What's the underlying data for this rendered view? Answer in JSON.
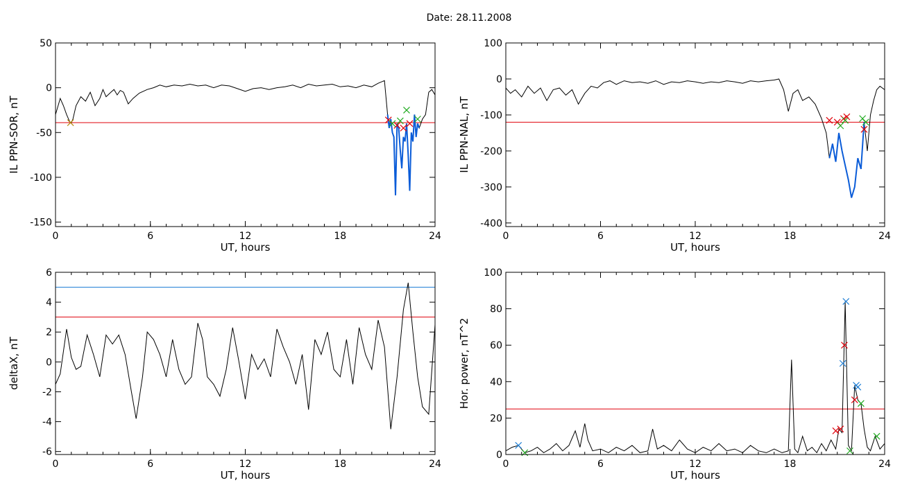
{
  "figure": {
    "title": "Date:  28.11.2008"
  },
  "colors": {
    "trace": "#000000",
    "highlight": "#0a5cd8",
    "threshold_red": "#e0000a",
    "threshold_blue": "#1f7fd6",
    "marker_red": "#e0000a",
    "marker_green": "#1faa1f",
    "marker_blue": "#1f7fd6",
    "marker_orange": "#b8860b"
  },
  "chart_data": [
    {
      "id": "p1",
      "type": "line",
      "xlabel": "UT, hours",
      "ylabel": "IL PPN-SOR, nT",
      "xlim": [
        0,
        24
      ],
      "ylim": [
        -155,
        50
      ],
      "xticks": [
        0,
        6,
        12,
        18,
        24
      ],
      "yticks": [
        50,
        0,
        -50,
        -100,
        -150
      ],
      "hlines": [
        {
          "y": -39,
          "color": "threshold_red"
        }
      ],
      "x": [
        0,
        0.3,
        0.5,
        0.7,
        0.9,
        1.0,
        1.1,
        1.3,
        1.6,
        1.9,
        2.2,
        2.5,
        2.8,
        3.0,
        3.2,
        3.5,
        3.7,
        3.9,
        4.1,
        4.3,
        4.6,
        4.9,
        5.3,
        5.8,
        6.2,
        6.6,
        7.0,
        7.5,
        8.0,
        8.5,
        9.0,
        9.5,
        10.0,
        10.5,
        11.0,
        11.5,
        12.0,
        12.5,
        13.0,
        13.5,
        14.0,
        14.5,
        15.0,
        15.5,
        16.0,
        16.5,
        17.0,
        17.5,
        18.0,
        18.5,
        19.0,
        19.5,
        20.0,
        20.4,
        20.8,
        21.0,
        21.1,
        21.2,
        21.3,
        21.4,
        21.5,
        21.6,
        21.7,
        21.8,
        21.9,
        22.0,
        22.1,
        22.2,
        22.3,
        22.4,
        22.5,
        22.6,
        22.7,
        22.8,
        22.9,
        23.0,
        23.2,
        23.4,
        23.6,
        23.8,
        24.0
      ],
      "values": [
        -30,
        -12,
        -20,
        -30,
        -38,
        -39,
        -35,
        -20,
        -10,
        -15,
        -5,
        -20,
        -12,
        -2,
        -10,
        -5,
        -2,
        -8,
        -3,
        -5,
        -18,
        -12,
        -6,
        -2,
        0,
        3,
        1,
        3,
        2,
        4,
        2,
        3,
        0,
        3,
        2,
        -1,
        -4,
        -1,
        0,
        -2,
        0,
        1,
        3,
        0,
        4,
        2,
        3,
        4,
        1,
        2,
        0,
        3,
        1,
        5,
        8,
        -30,
        -45,
        -35,
        -50,
        -55,
        -120,
        -40,
        -45,
        -70,
        -90,
        -55,
        -60,
        -40,
        -75,
        -115,
        -50,
        -60,
        -30,
        -55,
        -40,
        -45,
        -35,
        -30,
        -5,
        -2,
        -8
      ],
      "highlight_x": [
        21.0,
        23.0
      ],
      "markers": [
        {
          "x": 0.95,
          "y": -39,
          "color": "marker_orange"
        },
        {
          "x": 21.05,
          "y": -36,
          "color": "marker_red"
        },
        {
          "x": 21.3,
          "y": -40,
          "color": "marker_green"
        },
        {
          "x": 21.6,
          "y": -42,
          "color": "marker_red"
        },
        {
          "x": 21.8,
          "y": -37,
          "color": "marker_green"
        },
        {
          "x": 22.0,
          "y": -45,
          "color": "marker_red"
        },
        {
          "x": 22.2,
          "y": -25,
          "color": "marker_green"
        },
        {
          "x": 22.4,
          "y": -40,
          "color": "marker_red"
        },
        {
          "x": 22.9,
          "y": -35,
          "color": "marker_green"
        }
      ]
    },
    {
      "id": "p2",
      "type": "line",
      "xlabel": "UT, hours",
      "ylabel": "IL PPN-NAL, nT",
      "xlim": [
        0,
        24
      ],
      "ylim": [
        -410,
        100
      ],
      "xticks": [
        0,
        6,
        12,
        18,
        24
      ],
      "yticks": [
        100,
        0,
        -100,
        -200,
        -300,
        -400
      ],
      "hlines": [
        {
          "y": -120,
          "color": "threshold_red"
        }
      ],
      "x": [
        0,
        0.3,
        0.6,
        1.0,
        1.4,
        1.8,
        2.2,
        2.6,
        3.0,
        3.4,
        3.8,
        4.2,
        4.6,
        5.0,
        5.4,
        5.8,
        6.2,
        6.6,
        7.0,
        7.5,
        8.0,
        8.5,
        9.0,
        9.5,
        10.0,
        10.5,
        11.0,
        11.5,
        12.0,
        12.5,
        13.0,
        13.5,
        14.0,
        14.5,
        15.0,
        15.5,
        16.0,
        16.5,
        17.0,
        17.3,
        17.6,
        17.9,
        18.2,
        18.5,
        18.8,
        19.2,
        19.6,
        20.0,
        20.3,
        20.5,
        20.7,
        20.9,
        21.1,
        21.3,
        21.5,
        21.7,
        21.9,
        22.1,
        22.3,
        22.5,
        22.7,
        22.9,
        23.1,
        23.3,
        23.5,
        23.7,
        24.0
      ],
      "values": [
        -25,
        -40,
        -30,
        -50,
        -20,
        -40,
        -25,
        -60,
        -30,
        -25,
        -45,
        -30,
        -70,
        -40,
        -20,
        -25,
        -10,
        -5,
        -15,
        -5,
        -10,
        -8,
        -12,
        -5,
        -15,
        -8,
        -10,
        -5,
        -8,
        -12,
        -8,
        -10,
        -5,
        -8,
        -12,
        -5,
        -8,
        -5,
        -3,
        0,
        -30,
        -90,
        -40,
        -30,
        -60,
        -50,
        -70,
        -110,
        -150,
        -220,
        -180,
        -230,
        -150,
        -200,
        -240,
        -280,
        -330,
        -300,
        -220,
        -250,
        -120,
        -200,
        -100,
        -60,
        -30,
        -20,
        -30
      ],
      "highlight_x": [
        20.4,
        22.8
      ],
      "markers": [
        {
          "x": 20.5,
          "y": -115,
          "color": "marker_red"
        },
        {
          "x": 21.0,
          "y": -120,
          "color": "marker_red"
        },
        {
          "x": 21.2,
          "y": -130,
          "color": "marker_green"
        },
        {
          "x": 21.4,
          "y": -110,
          "color": "marker_red"
        },
        {
          "x": 21.5,
          "y": -115,
          "color": "marker_green"
        },
        {
          "x": 21.6,
          "y": -105,
          "color": "marker_red"
        },
        {
          "x": 22.6,
          "y": -110,
          "color": "marker_green"
        },
        {
          "x": 22.7,
          "y": -140,
          "color": "marker_red"
        },
        {
          "x": 22.8,
          "y": -120,
          "color": "marker_green"
        }
      ]
    },
    {
      "id": "p3",
      "type": "line",
      "xlabel": "UT, hours",
      "ylabel": "deltaX, nT",
      "xlim": [
        0,
        24
      ],
      "ylim": [
        -6.2,
        6
      ],
      "xticks": [
        0,
        6,
        12,
        18,
        24
      ],
      "yticks": [
        6,
        4,
        2,
        0,
        -2,
        -4,
        -6
      ],
      "hlines": [
        {
          "y": 5,
          "color": "threshold_blue"
        },
        {
          "y": 3,
          "color": "threshold_red"
        }
      ],
      "x": [
        0,
        0.3,
        0.7,
        1.0,
        1.3,
        1.6,
        2.0,
        2.4,
        2.8,
        3.2,
        3.6,
        4.0,
        4.4,
        4.8,
        5.1,
        5.5,
        5.8,
        6.2,
        6.6,
        7.0,
        7.4,
        7.8,
        8.2,
        8.6,
        9.0,
        9.3,
        9.6,
        10.0,
        10.4,
        10.8,
        11.2,
        11.6,
        12.0,
        12.4,
        12.8,
        13.2,
        13.6,
        14.0,
        14.4,
        14.8,
        15.2,
        15.6,
        16.0,
        16.4,
        16.8,
        17.2,
        17.6,
        18.0,
        18.4,
        18.8,
        19.2,
        19.6,
        20.0,
        20.4,
        20.8,
        21.2,
        21.6,
        22.0,
        22.3,
        22.6,
        22.9,
        23.2,
        23.6,
        24.0
      ],
      "values": [
        -1.5,
        -0.8,
        2.2,
        0.3,
        -0.5,
        -0.3,
        1.8,
        0.5,
        -1.0,
        1.8,
        1.2,
        1.8,
        0.5,
        -2.0,
        -3.8,
        -1.0,
        2.0,
        1.5,
        0.5,
        -1.0,
        1.5,
        -0.5,
        -1.5,
        -1.0,
        2.6,
        1.5,
        -1.0,
        -1.5,
        -2.3,
        -0.5,
        2.3,
        0.0,
        -2.5,
        0.5,
        -0.5,
        0.2,
        -1.0,
        2.2,
        1.0,
        0.0,
        -1.5,
        0.5,
        -3.2,
        1.5,
        0.5,
        2.0,
        -0.5,
        -1.0,
        1.5,
        -1.5,
        2.3,
        0.5,
        -0.5,
        2.8,
        1.0,
        -4.5,
        -1.0,
        3.5,
        5.3,
        2.0,
        -1.0,
        -3.0,
        -3.5,
        2.5
      ],
      "highlight_x": []
    },
    {
      "id": "p4",
      "type": "line",
      "xlabel": "UT, hours",
      "ylabel": "Hor. power, nT^2",
      "xlim": [
        0,
        24
      ],
      "ylim": [
        0,
        100
      ],
      "xticks": [
        0,
        6,
        12,
        18,
        24
      ],
      "yticks": [
        100,
        80,
        60,
        40,
        20,
        0
      ],
      "hlines": [
        {
          "y": 25,
          "color": "threshold_red"
        }
      ],
      "x": [
        0,
        0.4,
        0.8,
        1.2,
        1.6,
        2.0,
        2.4,
        2.8,
        3.2,
        3.6,
        4.0,
        4.4,
        4.7,
        5.0,
        5.2,
        5.5,
        6.0,
        6.5,
        7.0,
        7.5,
        8.0,
        8.5,
        9.0,
        9.3,
        9.6,
        10.0,
        10.5,
        11.0,
        11.5,
        12.0,
        12.5,
        13.0,
        13.5,
        14.0,
        14.5,
        15.0,
        15.5,
        16.0,
        16.5,
        17.0,
        17.5,
        17.9,
        18.1,
        18.3,
        18.5,
        18.8,
        19.1,
        19.4,
        19.7,
        20.0,
        20.3,
        20.6,
        20.9,
        21.1,
        21.3,
        21.5,
        21.7,
        21.9,
        22.1,
        22.3,
        22.5,
        22.7,
        22.9,
        23.1,
        23.4,
        23.7,
        24.0
      ],
      "values": [
        2,
        4,
        5,
        1,
        2,
        4,
        1,
        3,
        6,
        2,
        5,
        13,
        4,
        17,
        8,
        2,
        3,
        1,
        4,
        2,
        5,
        1,
        2,
        14,
        3,
        5,
        2,
        8,
        3,
        1,
        4,
        2,
        6,
        2,
        3,
        1,
        5,
        2,
        1,
        3,
        1,
        2,
        52,
        3,
        1,
        10,
        2,
        4,
        1,
        6,
        2,
        8,
        3,
        14,
        12,
        84,
        5,
        2,
        38,
        30,
        28,
        14,
        4,
        2,
        10,
        3,
        6
      ],
      "highlight_x": [],
      "markers": [
        {
          "x": 0.8,
          "y": 5,
          "color": "marker_blue"
        },
        {
          "x": 1.2,
          "y": 1,
          "color": "marker_green"
        },
        {
          "x": 20.9,
          "y": 13,
          "color": "marker_red"
        },
        {
          "x": 21.2,
          "y": 14,
          "color": "marker_red"
        },
        {
          "x": 21.35,
          "y": 50,
          "color": "marker_blue"
        },
        {
          "x": 21.45,
          "y": 60,
          "color": "marker_red"
        },
        {
          "x": 21.55,
          "y": 84,
          "color": "marker_blue"
        },
        {
          "x": 21.8,
          "y": 2,
          "color": "marker_green"
        },
        {
          "x": 22.1,
          "y": 30,
          "color": "marker_red"
        },
        {
          "x": 22.2,
          "y": 38,
          "color": "marker_blue"
        },
        {
          "x": 22.3,
          "y": 37,
          "color": "marker_blue"
        },
        {
          "x": 22.5,
          "y": 28,
          "color": "marker_green"
        },
        {
          "x": 23.5,
          "y": 10,
          "color": "marker_green"
        }
      ]
    }
  ]
}
